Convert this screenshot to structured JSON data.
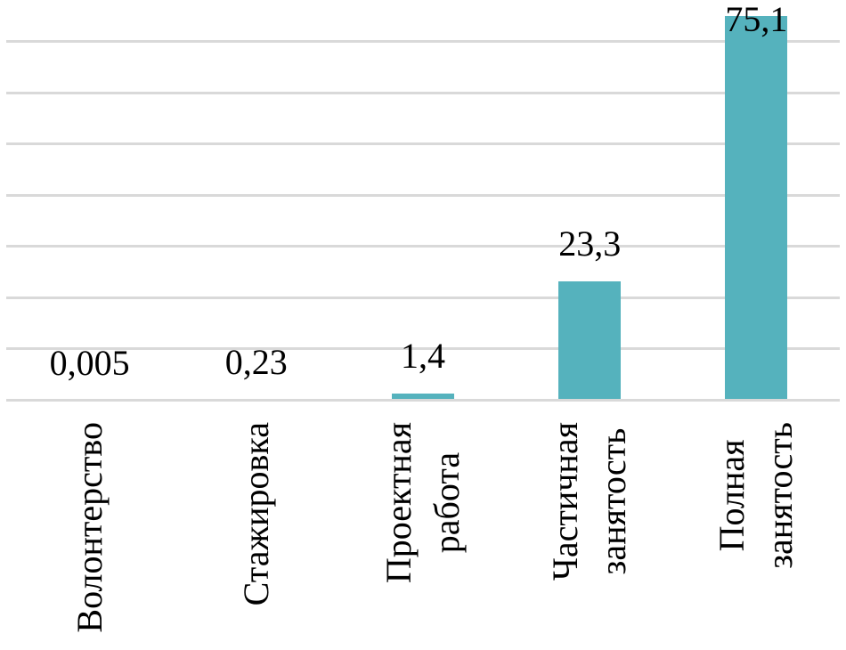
{
  "chart_data": {
    "type": "bar",
    "title": "",
    "xlabel": "",
    "ylabel": "",
    "categories": [
      "Волонтерство",
      "Стажировка",
      "Проектная работа",
      "Частичная занятость",
      "Полная занятость"
    ],
    "category_lines": [
      [
        "Волонтерство"
      ],
      [
        "Стажировка"
      ],
      [
        "Проектная",
        "работа"
      ],
      [
        "Частичная",
        "занятость"
      ],
      [
        "Полная",
        "занятость"
      ]
    ],
    "values": [
      0.005,
      0.23,
      1.4,
      23.3,
      75.1
    ],
    "value_labels": [
      "0,005",
      "0,23",
      "1,4",
      "23,3",
      "75,1"
    ],
    "ylim": [
      0,
      80
    ],
    "gridline_step": 10,
    "grid": "horizontal",
    "legend_position": "none",
    "value_axis_labels_visible": false,
    "category_label_rotation_deg": 90,
    "decimal_separator": ",",
    "colors": {
      "bar_fill": "#55B2BD",
      "gridline": "#D9D9D9",
      "text": "#000000",
      "background": "#FFFFFF"
    }
  }
}
